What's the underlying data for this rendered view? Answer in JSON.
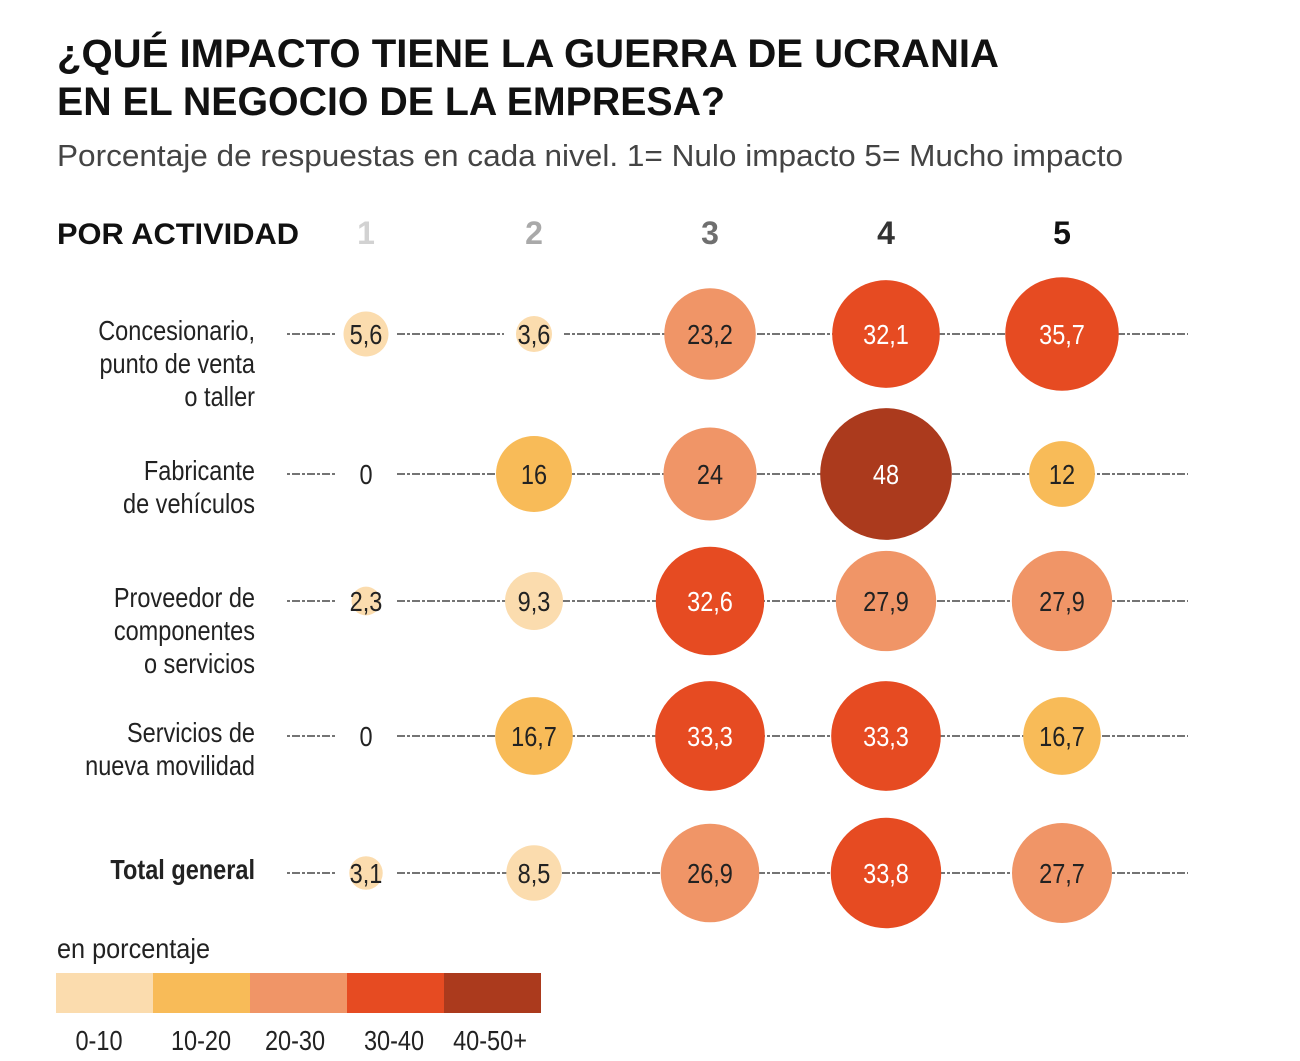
{
  "chart_data": {
    "type": "bubble-matrix",
    "title_lines": [
      "¿QUÉ IMPACTO TIENE LA GUERRA DE UCRANIA",
      "EN EL NEGOCIO DE LA EMPRESA?"
    ],
    "subtitle": "Porcentaje de respuestas en cada nivel. 1= Nulo impacto 5= Mucho impacto",
    "row_header": "POR ACTIVIDAD",
    "columns": [
      "1",
      "2",
      "3",
      "4",
      "5"
    ],
    "column_colors": [
      "#d2d2d2",
      "#a9a9a9",
      "#6f6f6f",
      "#333333",
      "#111111"
    ],
    "rows": [
      {
        "label_lines": [
          "Concesionario,",
          "punto de venta",
          "o taller"
        ],
        "bold": false,
        "values": [
          "5,6",
          "3,6",
          "23,2",
          "32,1",
          "35,7"
        ]
      },
      {
        "label_lines": [
          "Fabricante",
          "de vehículos"
        ],
        "bold": false,
        "values": [
          "0",
          "16",
          "24",
          "48",
          "12"
        ]
      },
      {
        "label_lines": [
          "Proveedor de",
          "componentes",
          "o servicios"
        ],
        "bold": false,
        "values": [
          "2,3",
          "9,3",
          "32,6",
          "27,9",
          "27,9"
        ]
      },
      {
        "label_lines": [
          "Servicios de",
          "nueva movilidad"
        ],
        "bold": false,
        "values": [
          "0",
          "16,7",
          "33,3",
          "33,3",
          "16,7"
        ]
      },
      {
        "label_lines": [
          "Total general"
        ],
        "bold": true,
        "values": [
          "3,1",
          "8,5",
          "26,9",
          "33,8",
          "27,7"
        ]
      }
    ],
    "legend": {
      "title": "en porcentaje",
      "bins": [
        {
          "label": "0-10",
          "color": "#fbdcae"
        },
        {
          "label": "10-20",
          "color": "#f8bb58"
        },
        {
          "label": "20-30",
          "color": "#f09567"
        },
        {
          "label": "30-40",
          "color": "#e64b22"
        },
        {
          "label": "40-50+",
          "color": "#ab3a1d"
        }
      ]
    }
  }
}
